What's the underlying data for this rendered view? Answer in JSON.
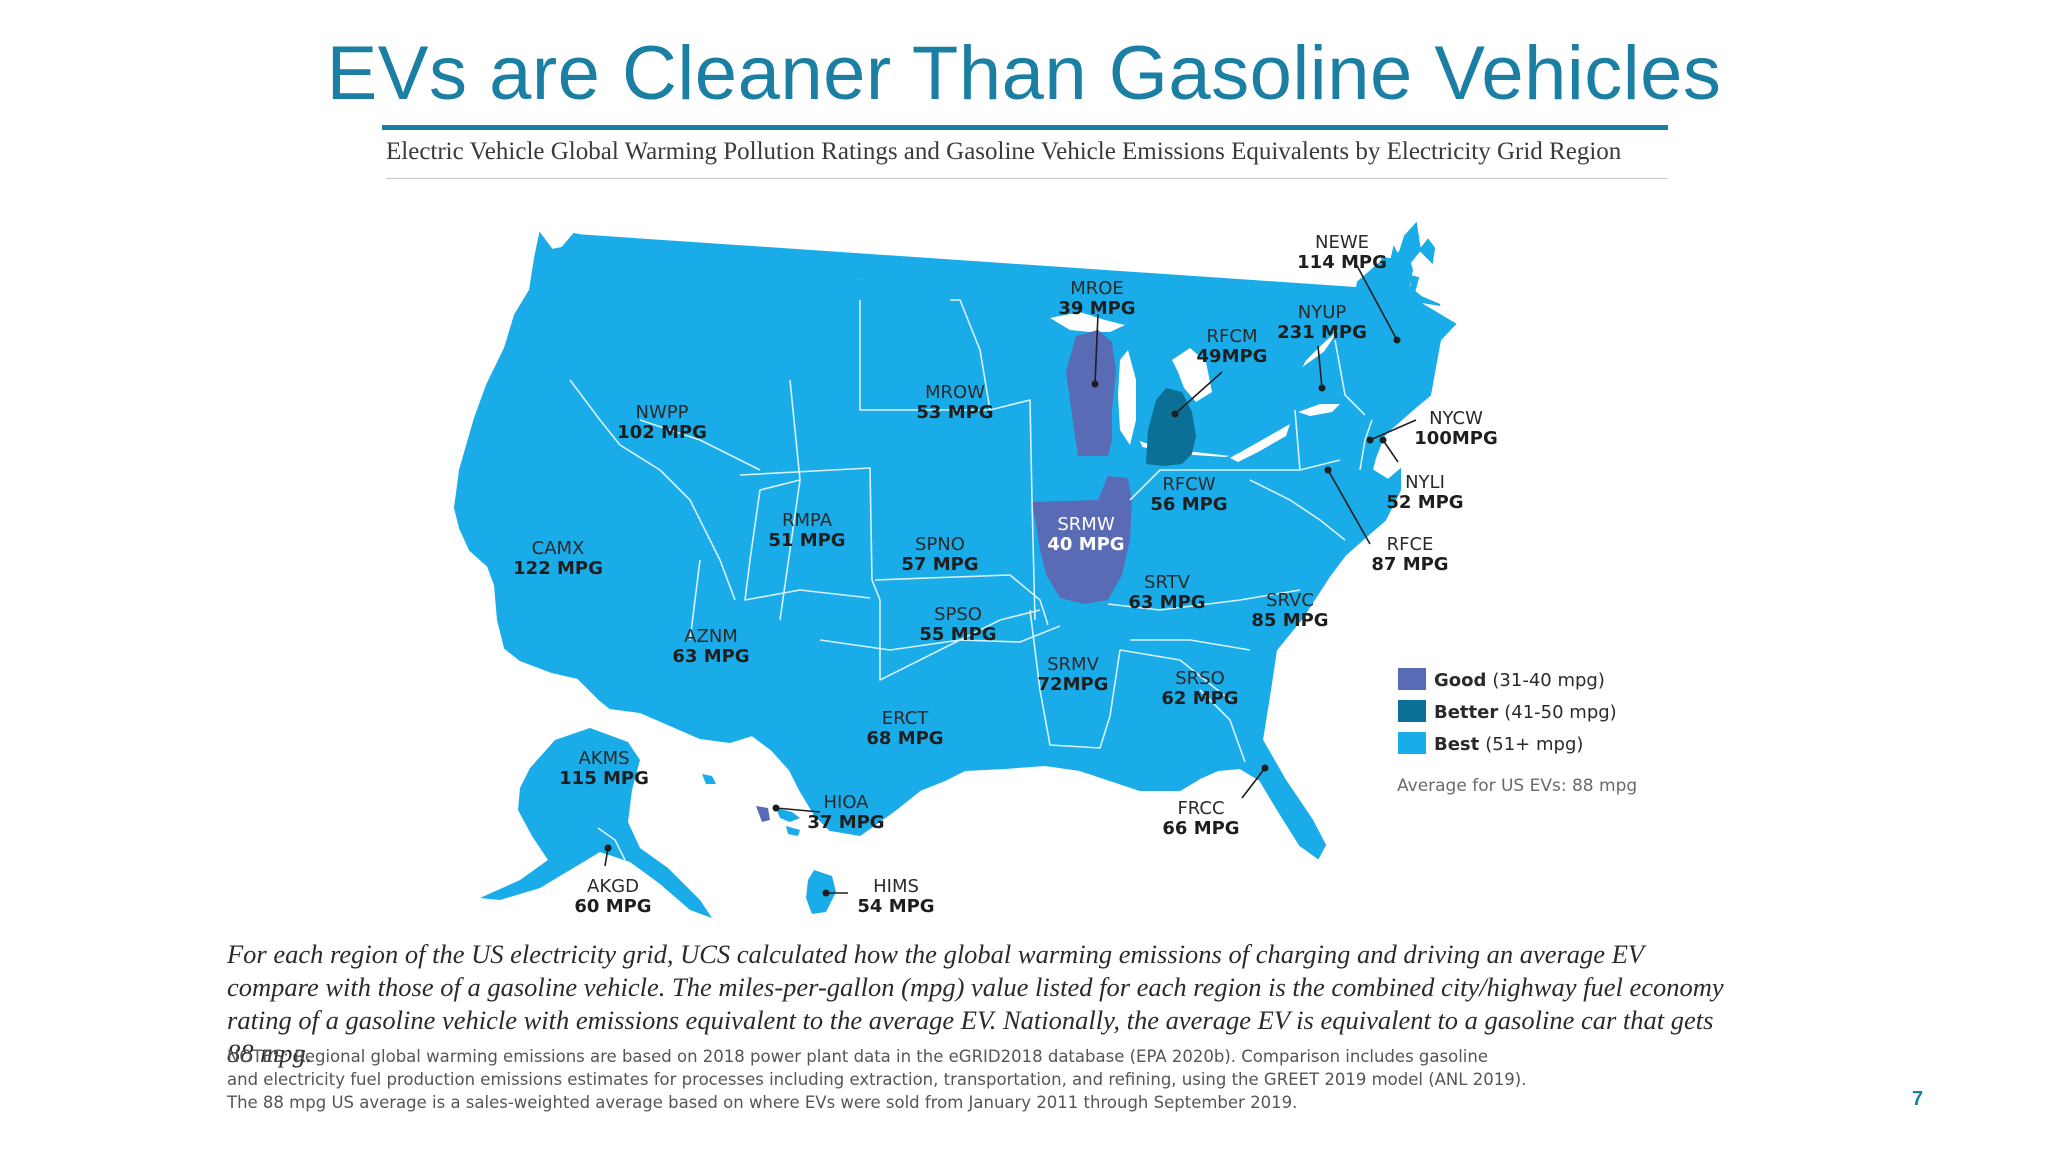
{
  "slide": {
    "title": "EVs are Cleaner Than Gasoline Vehicles",
    "page_number": "7",
    "title_color": "#1a7fa3"
  },
  "map": {
    "heading": "Electric Vehicle Global Warming Pollution Ratings and Gasoline Vehicle Emissions Equivalents by Electricity Grid Region",
    "regions": [
      {
        "id": "NEWE",
        "mpg": "114 MPG",
        "rating": "Best"
      },
      {
        "id": "MROE",
        "mpg": "39 MPG",
        "rating": "Good"
      },
      {
        "id": "NYUP",
        "mpg": "231 MPG",
        "rating": "Best"
      },
      {
        "id": "RFCM",
        "mpg": "49MPG",
        "rating": "Better"
      },
      {
        "id": "MROW",
        "mpg": "53 MPG",
        "rating": "Best"
      },
      {
        "id": "NWPP",
        "mpg": "102 MPG",
        "rating": "Best"
      },
      {
        "id": "NYCW",
        "mpg": "100MPG",
        "rating": "Best"
      },
      {
        "id": "NYLI",
        "mpg": "52 MPG",
        "rating": "Best"
      },
      {
        "id": "RFCW",
        "mpg": "56 MPG",
        "rating": "Best"
      },
      {
        "id": "RMPA",
        "mpg": "51 MPG",
        "rating": "Best"
      },
      {
        "id": "SRMW",
        "mpg": "40 MPG",
        "rating": "Good"
      },
      {
        "id": "RFCE",
        "mpg": "87 MPG",
        "rating": "Best"
      },
      {
        "id": "CAMX",
        "mpg": "122 MPG",
        "rating": "Best"
      },
      {
        "id": "SPNO",
        "mpg": "57 MPG",
        "rating": "Best"
      },
      {
        "id": "SRTV",
        "mpg": "63 MPG",
        "rating": "Best"
      },
      {
        "id": "SPSO",
        "mpg": "55 MPG",
        "rating": "Best"
      },
      {
        "id": "SRVC",
        "mpg": "85 MPG",
        "rating": "Best"
      },
      {
        "id": "AZNM",
        "mpg": "63 MPG",
        "rating": "Best"
      },
      {
        "id": "SRMV",
        "mpg": "72MPG",
        "rating": "Best"
      },
      {
        "id": "SRSO",
        "mpg": "62 MPG",
        "rating": "Best"
      },
      {
        "id": "ERCT",
        "mpg": "68 MPG",
        "rating": "Best"
      },
      {
        "id": "AKMS",
        "mpg": "115 MPG",
        "rating": "Best"
      },
      {
        "id": "HIOA",
        "mpg": "37 MPG",
        "rating": "Good"
      },
      {
        "id": "FRCC",
        "mpg": "66 MPG",
        "rating": "Best"
      },
      {
        "id": "AKGD",
        "mpg": "60 MPG",
        "rating": "Best"
      },
      {
        "id": "HIMS",
        "mpg": "54 MPG",
        "rating": "Best"
      }
    ],
    "legend": [
      {
        "label": "Good",
        "range": "(31-40 mpg)",
        "color": "#5a6bb5"
      },
      {
        "label": "Better",
        "range": "(41-50 mpg)",
        "color": "#0b6f96"
      },
      {
        "label": "Best",
        "range": "(51+ mpg)",
        "color": "#1aace8"
      }
    ],
    "average_note": "Average for US EVs: 88 mpg",
    "colors": {
      "best": "#1aace8",
      "better": "#0b6f96",
      "good": "#5a6bb5",
      "border": "#d8f1fb"
    }
  },
  "caption": "For each region of the US electricity grid, UCS calculated how the global warming emissions of charging and driving an average EV compare with those of a gasoline vehicle. The miles-per-gallon (mpg) value listed for each region is the combined city/highway fuel economy rating of a gasoline vehicle with emissions equivalent to the average EV. Nationally, the average EV is equivalent to a gasoline car that gets 88 mpg.",
  "notes": "NOTES: Regional global warming emissions are based on 2018 power plant data in the eGRID2018 database (EPA 2020b). Comparison includes gasoline\nand electricity fuel production emissions estimates for processes including extraction, transportation, and refining, using the GREET 2019 model (ANL 2019).\nThe 88 mpg US average is a sales-weighted average based on where EVs were sold from January 2011 through September 2019."
}
